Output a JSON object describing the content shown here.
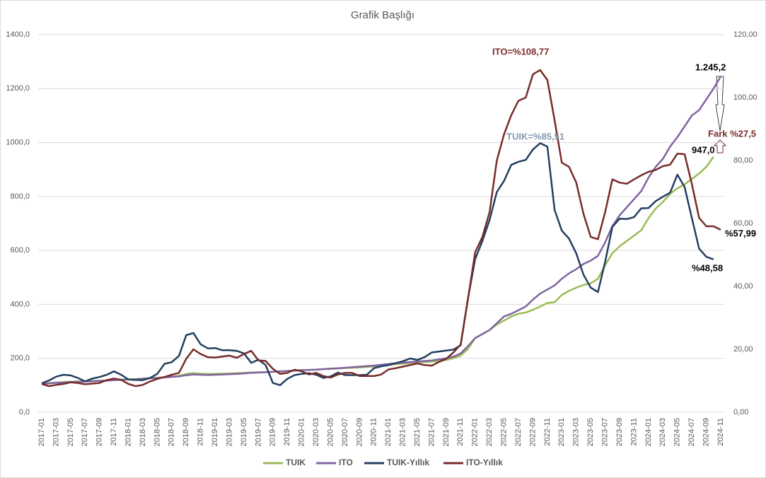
{
  "chart_data": {
    "type": "line",
    "title": "Grafik Başlığı",
    "categories": [
      "2017-01",
      null,
      "2017-03",
      null,
      "2017-05",
      null,
      "2017-07",
      null,
      "2017-09",
      null,
      "2017-11",
      null,
      "2018-01",
      null,
      "2018-03",
      null,
      "2018-05",
      null,
      "2018-07",
      null,
      "2018-09",
      null,
      "2018-11",
      null,
      "2019-01",
      null,
      "2019-03",
      null,
      "2019-05",
      null,
      "2019-07",
      null,
      "2019-09",
      null,
      "2019-11",
      null,
      "2020-01",
      null,
      "2020-03",
      null,
      "2020-05",
      null,
      "2020-07",
      null,
      "2020-09",
      null,
      "2020-11",
      null,
      "2021-01",
      null,
      "2021-03",
      null,
      "2021-05",
      null,
      "2021-07",
      null,
      "2021-09",
      null,
      "2021-11",
      null,
      "2022-01",
      null,
      "2022-03",
      null,
      "2022-05",
      null,
      "2022-07",
      null,
      "2022-09",
      null,
      "2022-11",
      null,
      "2023-01",
      null,
      "2023-03",
      null,
      "2023-05",
      null,
      "2023-07",
      null,
      "2023-09",
      null,
      "2023-11",
      null,
      "2024-01",
      null,
      "2024-03",
      null,
      "2024-05",
      null,
      "2024-07",
      null,
      "2024-09",
      null,
      "2024-11"
    ],
    "series": [
      {
        "name": "TUIK",
        "color": "#9bbb59",
        "values": [
          105,
          108,
          110,
          112,
          113,
          114,
          115,
          116,
          117,
          118,
          120,
          121,
          122,
          123,
          125,
          127,
          128,
          130,
          132,
          135,
          142,
          145,
          143,
          142,
          142,
          143,
          144,
          145,
          146,
          147,
          148,
          149,
          150,
          152,
          153,
          154,
          156,
          157,
          158,
          160,
          161,
          162,
          164,
          165,
          166,
          168,
          170,
          172,
          175,
          178,
          180,
          182,
          184,
          186,
          188,
          190,
          194,
          200,
          210,
          235,
          275,
          290,
          305,
          325,
          340,
          355,
          365,
          370,
          380,
          392,
          405,
          408,
          435,
          450,
          462,
          472,
          478,
          495,
          545,
          590,
          615,
          635,
          655,
          675,
          720,
          755,
          780,
          810,
          830,
          845,
          865,
          885,
          910,
          947.0,
          null
        ]
      },
      {
        "name": "ITO",
        "color": "#8064a2",
        "values": [
          105,
          107,
          109,
          110,
          112,
          113,
          114,
          115,
          116,
          117,
          119,
          120,
          121,
          122,
          124,
          126,
          127,
          129,
          131,
          133,
          137,
          140,
          139,
          138,
          139,
          140,
          141,
          142,
          144,
          146,
          147,
          148,
          150,
          151,
          153,
          155,
          156,
          157,
          158,
          160,
          162,
          163,
          165,
          167,
          169,
          171,
          173,
          176,
          179,
          182,
          184,
          186,
          188,
          190,
          192,
          196,
          200,
          206,
          218,
          245,
          275,
          290,
          305,
          330,
          355,
          365,
          378,
          392,
          418,
          440,
          455,
          470,
          495,
          515,
          530,
          550,
          562,
          580,
          630,
          690,
          730,
          760,
          790,
          820,
          870,
          910,
          940,
          985,
          1020,
          1060,
          1100,
          1120,
          1160,
          1200,
          1245.2
        ]
      },
      {
        "name": "TUIK-Yıllık",
        "color": "#243f60",
        "axis": "y2",
        "values": [
          9.2,
          10.1,
          11.3,
          11.9,
          11.7,
          10.9,
          9.8,
          10.7,
          11.2,
          11.9,
          13.0,
          11.9,
          10.4,
          10.3,
          10.2,
          10.9,
          12.2,
          15.4,
          15.9,
          17.9,
          24.5,
          25.2,
          21.6,
          20.3,
          20.4,
          19.7,
          19.7,
          19.5,
          18.7,
          15.7,
          16.7,
          15.0,
          9.3,
          8.6,
          10.6,
          11.8,
          12.2,
          12.4,
          11.9,
          10.9,
          11.4,
          12.6,
          11.8,
          11.8,
          11.8,
          11.9,
          14.0,
          14.6,
          15.0,
          15.6,
          16.2,
          17.1,
          16.6,
          17.5,
          19.0,
          19.3,
          19.6,
          19.9,
          21.3,
          36.1,
          48.7,
          54.4,
          61.1,
          70.0,
          73.5,
          78.6,
          79.6,
          80.2,
          83.5,
          85.51,
          84.4,
          64.3,
          57.7,
          55.2,
          50.5,
          43.7,
          39.6,
          38.2,
          47.8,
          58.9,
          61.5,
          61.4,
          62.0,
          64.8,
          64.9,
          67.1,
          68.5,
          69.8,
          75.5,
          71.6,
          61.8,
          52.0,
          49.4,
          48.58,
          null
        ]
      },
      {
        "name": "ITO-Yıllık",
        "color": "#772c2a",
        "axis": "y2",
        "values": [
          9.0,
          8.3,
          8.7,
          9.0,
          9.5,
          9.3,
          8.9,
          9.1,
          9.3,
          10.2,
          10.7,
          10.3,
          9.0,
          8.3,
          8.7,
          9.8,
          10.6,
          11.2,
          11.9,
          12.5,
          17.0,
          20.0,
          18.5,
          17.5,
          17.4,
          17.7,
          18.0,
          17.3,
          18.5,
          19.5,
          16.5,
          16.3,
          13.8,
          12.2,
          12.5,
          13.5,
          13.0,
          12.0,
          12.5,
          11.5,
          11.0,
          12.0,
          12.5,
          12.5,
          11.5,
          11.5,
          11.5,
          12.0,
          13.6,
          14.0,
          14.5,
          15.0,
          15.5,
          15.0,
          14.8,
          16.0,
          17.0,
          19.0,
          21.5,
          36.0,
          50.8,
          55.7,
          63.6,
          80.0,
          88.3,
          94.4,
          99.0,
          100.0,
          107.4,
          108.77,
          105.6,
          92.8,
          79.3,
          78.0,
          73.0,
          63.0,
          55.7,
          55.0,
          63.6,
          74.0,
          73.0,
          72.6,
          74.0,
          75.3,
          76.4,
          77.0,
          78.2,
          78.7,
          82.2,
          82.0,
          72.6,
          61.8,
          59.1,
          59.1,
          57.99
        ]
      }
    ],
    "ylim": [
      0,
      1400
    ],
    "yticks": [
      {
        "value": 0,
        "label": "0,0"
      },
      {
        "value": 200,
        "label": "200,0"
      },
      {
        "value": 400,
        "label": "400,0"
      },
      {
        "value": 600,
        "label": "600,0"
      },
      {
        "value": 800,
        "label": "800,0"
      },
      {
        "value": 1000,
        "label": "1000,0"
      },
      {
        "value": 1200,
        "label": "1200,0"
      },
      {
        "value": 1400,
        "label": "1400,0"
      }
    ],
    "y2lim": [
      0,
      120
    ],
    "y2ticks": [
      {
        "value": 0,
        "label": "0,00"
      },
      {
        "value": 20,
        "label": "20,00"
      },
      {
        "value": 40,
        "label": "40,00"
      },
      {
        "value": 60,
        "label": "60,00"
      },
      {
        "value": 80,
        "label": "80,00"
      },
      {
        "value": 100,
        "label": "100,00"
      },
      {
        "value": 120,
        "label": "120,00"
      }
    ],
    "grid": true,
    "legend": "bottom",
    "annotations": [
      "ITO=%108,77",
      "TUIK=%85,51",
      "1.245,2",
      "947,0",
      "%57,99",
      "%48,58",
      "Fark %27,5"
    ]
  }
}
